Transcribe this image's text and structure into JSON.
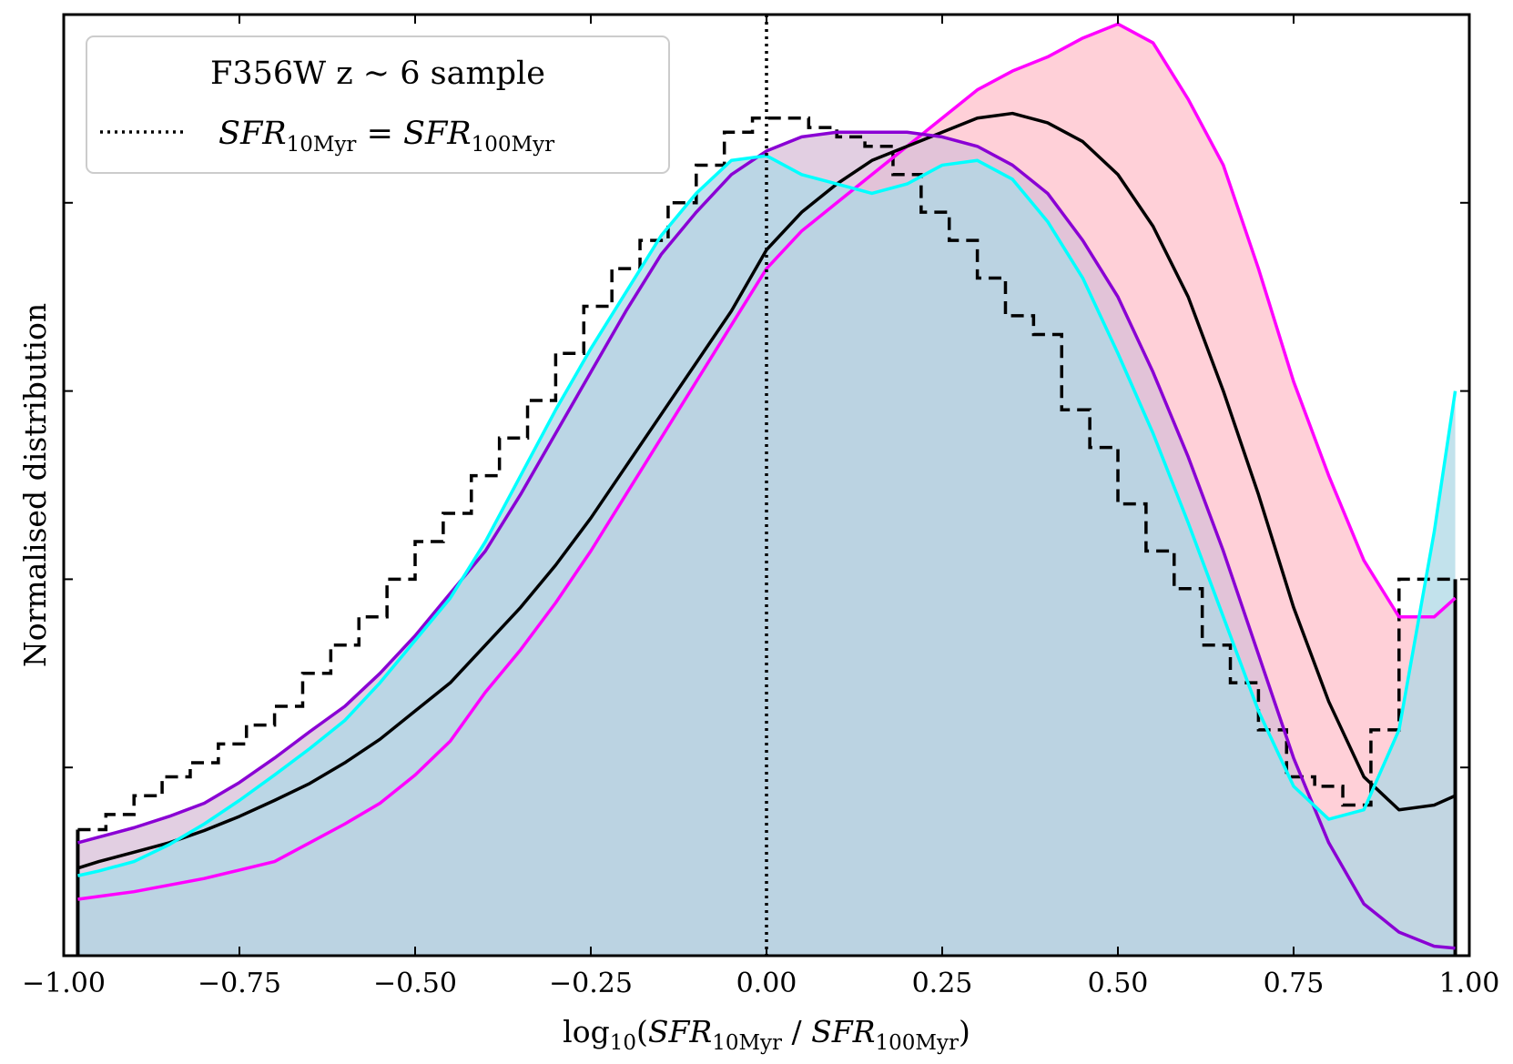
{
  "chart_data": {
    "type": "line",
    "title": "",
    "xlabel": "log10(SFR10Myr / SFR100Myr)",
    "xlabel_parts": {
      "log": "log",
      "log_sub": "10",
      "open": "(",
      "sfr1": "SFR",
      "sub1": "10Myr",
      "slash": " / ",
      "sfr2": "SFR",
      "sub2": "100Myr",
      "close": ")"
    },
    "ylabel": "Normalised distribution",
    "xlim": [
      -1.0,
      1.0
    ],
    "ylim": [
      0,
      1.0
    ],
    "xticks": [
      -1.0,
      -0.75,
      -0.5,
      -0.25,
      0.0,
      0.25,
      0.5,
      0.75,
      1.0
    ],
    "xtick_labels": [
      "−1.00",
      "−0.75",
      "−0.50",
      "−0.25",
      "0.00",
      "0.25",
      "0.50",
      "0.75",
      "1.00"
    ],
    "yticks": [
      0.2,
      0.4,
      0.6,
      0.8
    ],
    "grid": false,
    "legend": {
      "placement": "top-left",
      "title": "F356W z  ∼ 6 sample",
      "entry": {
        "sfr1": "SFR",
        "sub1": "10Myr",
        "eq": " = ",
        "sfr2": "SFR",
        "sub2": "100Myr"
      }
    },
    "reference_line": {
      "x": 0.0,
      "style": "dotted",
      "color": "#000000"
    },
    "histogram": {
      "style": "dashed-step",
      "color": "#000000",
      "x_start": -0.98,
      "bin_width": 0.04,
      "values": [
        0.134,
        0.15,
        0.17,
        0.19,
        0.205,
        0.225,
        0.245,
        0.265,
        0.3,
        0.33,
        0.36,
        0.4,
        0.44,
        0.47,
        0.51,
        0.55,
        0.59,
        0.64,
        0.69,
        0.73,
        0.76,
        0.8,
        0.84,
        0.875,
        0.89,
        0.89,
        0.88,
        0.87,
        0.86,
        0.83,
        0.79,
        0.76,
        0.72,
        0.68,
        0.66,
        0.58,
        0.54,
        0.48,
        0.43,
        0.39,
        0.33,
        0.29,
        0.24,
        0.19,
        0.18,
        0.16,
        0.24,
        0.4,
        0.4
      ]
    },
    "series": [
      {
        "color": "#ff00ff",
        "fill": "#ffc0cb",
        "x": [
          -0.98,
          -0.95,
          -0.9,
          -0.85,
          -0.8,
          -0.75,
          -0.7,
          -0.65,
          -0.6,
          -0.55,
          -0.5,
          -0.45,
          -0.4,
          -0.35,
          -0.3,
          -0.25,
          -0.2,
          -0.15,
          -0.1,
          -0.05,
          0.0,
          0.05,
          0.1,
          0.15,
          0.2,
          0.25,
          0.3,
          0.35,
          0.4,
          0.45,
          0.5,
          0.55,
          0.6,
          0.65,
          0.7,
          0.75,
          0.8,
          0.85,
          0.9,
          0.95,
          0.98
        ],
        "y": [
          0.06,
          0.063,
          0.068,
          0.075,
          0.082,
          0.091,
          0.1,
          0.12,
          0.14,
          0.162,
          0.192,
          0.228,
          0.28,
          0.325,
          0.375,
          0.43,
          0.49,
          0.55,
          0.61,
          0.67,
          0.73,
          0.77,
          0.8,
          0.83,
          0.86,
          0.89,
          0.92,
          0.94,
          0.955,
          0.975,
          0.99,
          0.97,
          0.91,
          0.84,
          0.73,
          0.61,
          0.51,
          0.42,
          0.36,
          0.36,
          0.38
        ]
      },
      {
        "color": "#000000",
        "fill": "none",
        "x": [
          -0.98,
          -0.95,
          -0.9,
          -0.85,
          -0.8,
          -0.75,
          -0.7,
          -0.65,
          -0.6,
          -0.55,
          -0.5,
          -0.45,
          -0.4,
          -0.35,
          -0.3,
          -0.25,
          -0.2,
          -0.15,
          -0.1,
          -0.05,
          0.0,
          0.05,
          0.1,
          0.15,
          0.2,
          0.25,
          0.3,
          0.35,
          0.4,
          0.45,
          0.5,
          0.55,
          0.6,
          0.65,
          0.7,
          0.75,
          0.8,
          0.85,
          0.9,
          0.95,
          0.98
        ],
        "y": [
          0.093,
          0.1,
          0.11,
          0.12,
          0.133,
          0.148,
          0.165,
          0.183,
          0.205,
          0.23,
          0.26,
          0.29,
          0.33,
          0.37,
          0.415,
          0.465,
          0.52,
          0.575,
          0.63,
          0.685,
          0.75,
          0.79,
          0.82,
          0.845,
          0.86,
          0.875,
          0.89,
          0.895,
          0.885,
          0.865,
          0.83,
          0.775,
          0.7,
          0.6,
          0.49,
          0.37,
          0.27,
          0.19,
          0.155,
          0.16,
          0.17
        ]
      },
      {
        "color": "#8a00d4",
        "fill": "#d8bfd8",
        "x": [
          -0.98,
          -0.95,
          -0.9,
          -0.85,
          -0.8,
          -0.75,
          -0.7,
          -0.65,
          -0.6,
          -0.55,
          -0.5,
          -0.45,
          -0.4,
          -0.35,
          -0.3,
          -0.25,
          -0.2,
          -0.15,
          -0.1,
          -0.05,
          0.0,
          0.05,
          0.1,
          0.15,
          0.2,
          0.25,
          0.3,
          0.35,
          0.4,
          0.45,
          0.5,
          0.55,
          0.6,
          0.65,
          0.7,
          0.75,
          0.8,
          0.85,
          0.9,
          0.95,
          0.98
        ],
        "y": [
          0.12,
          0.126,
          0.136,
          0.148,
          0.162,
          0.184,
          0.21,
          0.238,
          0.265,
          0.3,
          0.34,
          0.385,
          0.43,
          0.49,
          0.555,
          0.62,
          0.685,
          0.745,
          0.79,
          0.83,
          0.855,
          0.87,
          0.875,
          0.875,
          0.875,
          0.87,
          0.86,
          0.84,
          0.81,
          0.76,
          0.7,
          0.62,
          0.53,
          0.43,
          0.32,
          0.21,
          0.12,
          0.055,
          0.025,
          0.01,
          0.008
        ]
      },
      {
        "color": "#00ffff",
        "fill": "#add8e6",
        "x": [
          -0.98,
          -0.95,
          -0.9,
          -0.85,
          -0.8,
          -0.75,
          -0.7,
          -0.65,
          -0.6,
          -0.55,
          -0.5,
          -0.45,
          -0.4,
          -0.35,
          -0.3,
          -0.25,
          -0.2,
          -0.15,
          -0.1,
          -0.05,
          0.0,
          0.05,
          0.1,
          0.15,
          0.2,
          0.25,
          0.3,
          0.35,
          0.4,
          0.45,
          0.5,
          0.55,
          0.6,
          0.65,
          0.7,
          0.75,
          0.8,
          0.85,
          0.9,
          0.95,
          0.98
        ],
        "y": [
          0.085,
          0.09,
          0.1,
          0.118,
          0.14,
          0.165,
          0.192,
          0.22,
          0.25,
          0.29,
          0.335,
          0.38,
          0.44,
          0.51,
          0.58,
          0.645,
          0.705,
          0.765,
          0.81,
          0.845,
          0.85,
          0.83,
          0.82,
          0.81,
          0.82,
          0.84,
          0.845,
          0.825,
          0.78,
          0.72,
          0.64,
          0.555,
          0.46,
          0.36,
          0.26,
          0.18,
          0.145,
          0.155,
          0.24,
          0.45,
          0.6
        ]
      }
    ]
  }
}
